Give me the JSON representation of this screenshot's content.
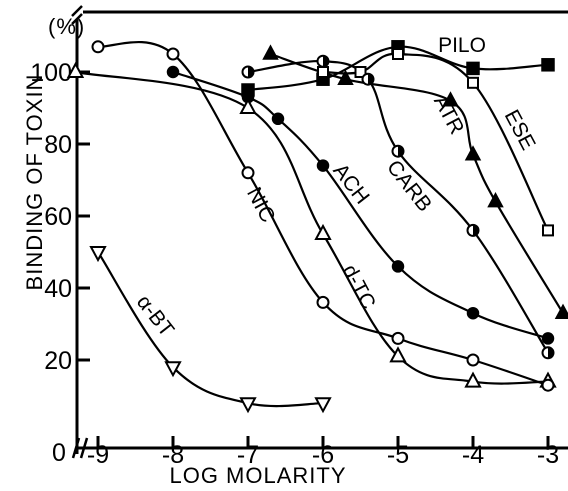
{
  "chart_data": {
    "type": "line",
    "xlabel": "LOG MOLARITY",
    "ylabel": "BINDING OF TOXIN",
    "ylabel_unit": "(%)",
    "xlim": [
      -9.2,
      -2.9
    ],
    "ylim": [
      0,
      110
    ],
    "x_ticks": [
      -9,
      -8,
      -7,
      -6,
      -5,
      -4,
      -3
    ],
    "x_tick_labels": [
      "-9",
      "-8",
      "-7",
      "-6",
      "-5",
      "-4",
      "-3"
    ],
    "y_ticks": [
      20,
      40,
      60,
      80,
      100
    ],
    "y_tick_labels": [
      "20",
      "40",
      "60",
      "80",
      "100"
    ],
    "origin_label": "0",
    "grid": false,
    "series": [
      {
        "name": "PILO",
        "marker": "square-filled",
        "x": [
          -7,
          -6,
          -5,
          -4,
          -3
        ],
        "y": [
          95,
          98,
          107,
          101,
          102
        ]
      },
      {
        "name": "ESE",
        "marker": "square-open",
        "x": [
          -6,
          -5.5,
          -5,
          -4,
          -3
        ],
        "y": [
          100,
          100,
          105,
          97,
          56
        ]
      },
      {
        "name": "ATR",
        "marker": "triangle-filled",
        "x": [
          -6.7,
          -5.7,
          -4.3,
          -4,
          -3.7,
          -2.8
        ],
        "y": [
          105,
          98,
          92,
          77,
          64,
          33
        ]
      },
      {
        "name": "CARB",
        "marker": "circle-half",
        "x": [
          -7,
          -6,
          -5.4,
          -5,
          -4,
          -3
        ],
        "y": [
          100,
          103,
          98,
          78,
          56,
          22
        ]
      },
      {
        "name": "ACH",
        "marker": "circle-filled",
        "x": [
          -8,
          -7,
          -6.6,
          -6,
          -5,
          -4,
          -3
        ],
        "y": [
          100,
          93,
          87,
          74,
          46,
          33,
          26
        ]
      },
      {
        "name": "d-TC",
        "marker": "triangle-open",
        "x": [
          -9.3,
          -7,
          -6,
          -5,
          -4,
          -3
        ],
        "y": [
          100,
          90,
          55,
          21,
          14,
          14
        ]
      },
      {
        "name": "NIC",
        "marker": "circle-open",
        "x": [
          -9,
          -8,
          -7,
          -6,
          -5,
          -4,
          -3
        ],
        "y": [
          107,
          105,
          72,
          36,
          26,
          20,
          13
        ]
      },
      {
        "name": "α-BT",
        "marker": "triangle-down-open",
        "x": [
          -9,
          -8,
          -7,
          -6
        ],
        "y": [
          50,
          18,
          8,
          8
        ]
      }
    ]
  }
}
